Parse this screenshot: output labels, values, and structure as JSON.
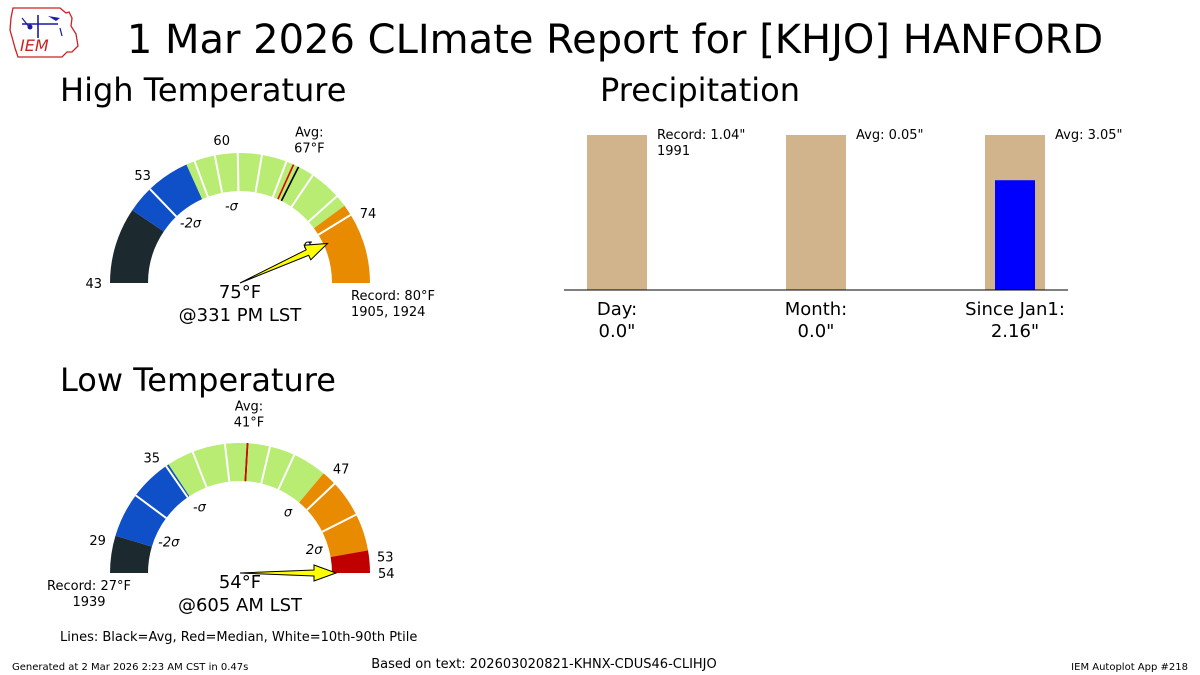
{
  "title": "1 Mar 2026 CLImate Report for [KHJO] HANFORD",
  "logo_text": "IEM",
  "footer": {
    "generated": "Generated at 2 Mar 2026 2:23 AM CST in 0.47s",
    "source": "Based on text: 202603020821-KHNX-CDUS46-CLIHJO",
    "app": "IEM Autoplot App #218"
  },
  "legend_note": "Lines: Black=Avg, Red=Median, White=10th-90th Ptile",
  "colors": {
    "dark": "#1c2a30",
    "blue": "#0f4fc8",
    "green": "#b8ec72",
    "orange": "#e88b00",
    "red": "#c00000",
    "tan": "#d2b48c",
    "precip_blue": "#0000ff",
    "arrow": "#ffff00"
  },
  "chart_data": [
    {
      "type": "gauge",
      "title": "High Temperature",
      "range": [
        43,
        80
      ],
      "value": 75,
      "value_label": "75°F",
      "time_label": "@331 PM LST",
      "avg": 67,
      "avg_label": "Avg:\n67°F",
      "median": 66.5,
      "record_label": "Record: 80°F\n1905, 1924",
      "record_side": "right",
      "bands": [
        {
          "from": 43,
          "to": 50,
          "color": "dark"
        },
        {
          "from": 50,
          "to": 56.5,
          "color": "blue"
        },
        {
          "from": 56.5,
          "to": 72.5,
          "color": "green"
        },
        {
          "from": 72.5,
          "to": 80,
          "color": "orange"
        }
      ],
      "ticks": [
        {
          "value": 43,
          "label": "43"
        },
        {
          "value": 53,
          "label": "53"
        },
        {
          "value": 60,
          "label": "60"
        },
        {
          "value": 74,
          "label": "74"
        }
      ],
      "sigma_labels": [
        {
          "value": 53.4,
          "label": "-2σ"
        },
        {
          "value": 60.2,
          "label": "-σ"
        },
        {
          "value": 73.8,
          "label": "σ"
        }
      ],
      "percentile_lines": [
        52.5,
        57.3,
        59.2,
        61.3,
        63.5,
        65.8,
        68.5,
        71.4,
        73.5
      ]
    },
    {
      "type": "gauge",
      "title": "Low Temperature",
      "range": [
        27,
        54
      ],
      "value": 54,
      "value_label": "54°F",
      "time_label": "@605 AM LST",
      "avg": 41,
      "avg_label": "Avg:\n41°F",
      "median": 41,
      "record_label": "Record: 27°F\n1939",
      "record_side": "left",
      "bands": [
        {
          "from": 27,
          "to": 29.5,
          "color": "dark"
        },
        {
          "from": 29.5,
          "to": 35.5,
          "color": "blue"
        },
        {
          "from": 35.5,
          "to": 46.5,
          "color": "green"
        },
        {
          "from": 46.5,
          "to": 52.5,
          "color": "orange"
        },
        {
          "from": 52.5,
          "to": 54,
          "color": "red"
        }
      ],
      "ticks": [
        {
          "value": 29,
          "label": "29"
        },
        {
          "value": 35,
          "label": "35"
        },
        {
          "value": 47,
          "label": "47"
        },
        {
          "value": 53,
          "label": "53"
        },
        {
          "value": 54,
          "label": "54"
        }
      ],
      "sigma_labels": [
        {
          "value": 30.6,
          "label": "-2σ"
        },
        {
          "value": 35.8,
          "label": "-σ"
        },
        {
          "value": 46.2,
          "label": "σ"
        },
        {
          "value": 51.3,
          "label": "2σ"
        }
      ],
      "percentile_lines": [
        32.5,
        35.3,
        37.3,
        39.5,
        42.5,
        44.2,
        47.5,
        50.0
      ]
    },
    {
      "type": "bar",
      "title": "Precipitation",
      "categories": [
        "Day:",
        "Month:",
        "Since Jan1:"
      ],
      "value_labels": [
        "0.0\"",
        "0.0\"",
        "2.16\""
      ],
      "values": [
        0.0,
        0.0,
        2.16
      ],
      "reference": [
        1.04,
        0.05,
        3.05
      ],
      "reference_labels": [
        "Record: 1.04\"\n1991",
        "Avg: 0.05\"",
        "Avg: 3.05\""
      ]
    }
  ]
}
